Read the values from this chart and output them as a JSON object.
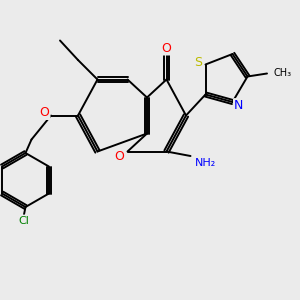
{
  "bg_color": "#ebebeb",
  "bond_color": "#000000",
  "line_width": 1.4,
  "atom_colors": {
    "O": "#ff0000",
    "N": "#0000ff",
    "S": "#bbbb00",
    "Cl": "#008000",
    "C": "#000000"
  },
  "figsize": [
    3.0,
    3.0
  ],
  "dpi": 100
}
